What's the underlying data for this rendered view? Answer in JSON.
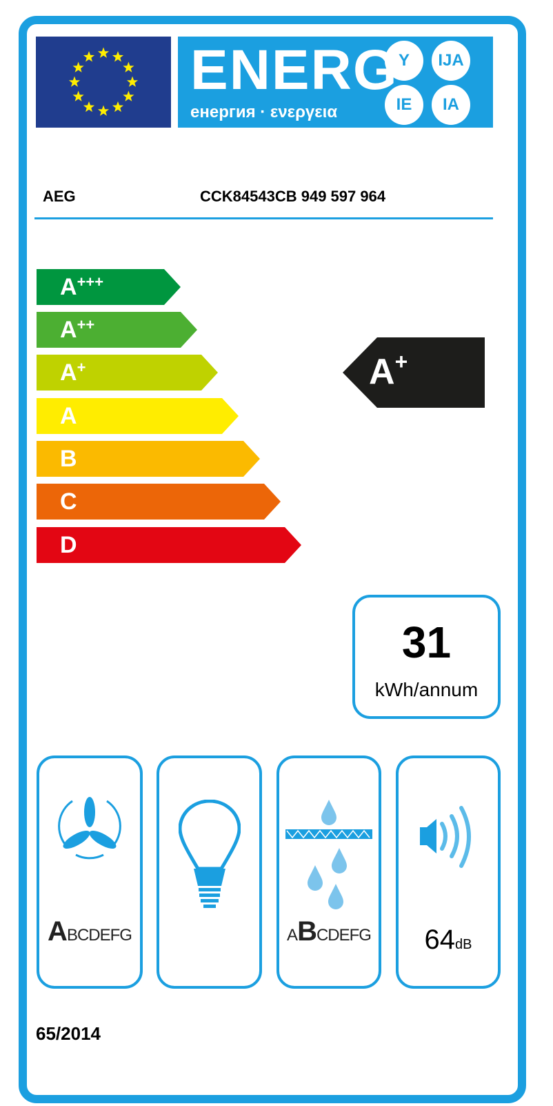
{
  "header": {
    "energy_word": "ENERG",
    "subtitle": "енергия · ενεργεια",
    "language_circles": [
      "Y",
      "IJA",
      "IE",
      "IA"
    ],
    "eu_flag_icon": "eu-flag-stars",
    "colors": {
      "label_blue": "#1b9fe0",
      "flag_blue": "#203d8e",
      "star_yellow": "#ffed00"
    }
  },
  "product": {
    "supplier": "AEG",
    "model": "CCK84543CB  949 597 964"
  },
  "energy_scale": {
    "classes": [
      {
        "label": "A",
        "plus": "+++",
        "color": "#00963f"
      },
      {
        "label": "A",
        "plus": "++",
        "color": "#4caf32"
      },
      {
        "label": "A",
        "plus": "+",
        "color": "#bfd200"
      },
      {
        "label": "A",
        "plus": "",
        "color": "#ffed00"
      },
      {
        "label": "B",
        "plus": "",
        "color": "#fbba00"
      },
      {
        "label": "C",
        "plus": "",
        "color": "#ec6608"
      },
      {
        "label": "D",
        "plus": "",
        "color": "#e30613"
      }
    ],
    "rating": {
      "label": "A",
      "plus": "+",
      "color": "#1d1d1b"
    }
  },
  "consumption": {
    "value": "31",
    "unit": "kWh/annum"
  },
  "pictograms": [
    {
      "icon": "fan-icon",
      "scale_highlight": "A",
      "scale_rest": "BCDEFG"
    },
    {
      "icon": "light-bulb-icon"
    },
    {
      "icon": "grease-filter-icon",
      "scale_prefix": "A",
      "scale_highlight": "B",
      "scale_rest": "CDEFG"
    },
    {
      "icon": "speaker-noise-icon",
      "value": "64",
      "unit": "dB"
    }
  ],
  "regulation": "65/2014"
}
